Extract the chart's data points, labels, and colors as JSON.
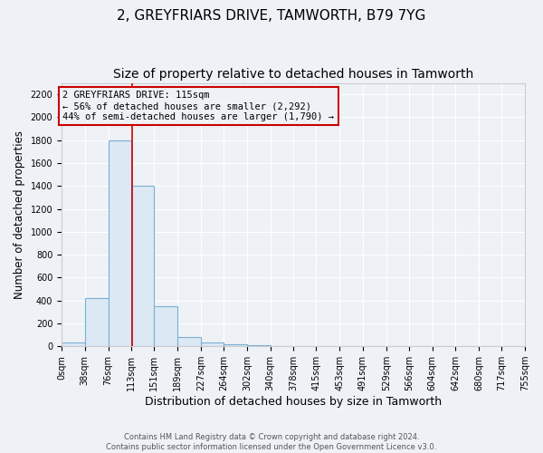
{
  "title": "2, GREYFRIARS DRIVE, TAMWORTH, B79 7YG",
  "subtitle": "Size of property relative to detached houses in Tamworth",
  "xlabel": "Distribution of detached houses by size in Tamworth",
  "ylabel": "Number of detached properties",
  "bin_edges": [
    0,
    38,
    76,
    113,
    151,
    189,
    227,
    264,
    302,
    340,
    378,
    415,
    453,
    491,
    529,
    566,
    604,
    642,
    680,
    717,
    755
  ],
  "bar_heights": [
    30,
    420,
    1800,
    1400,
    350,
    80,
    30,
    20,
    10,
    5,
    5,
    3,
    2,
    1,
    1,
    1,
    0,
    0,
    0,
    0
  ],
  "bar_color": "#dce9f5",
  "bar_edge_color": "#7aafd4",
  "property_size": 115,
  "vline_color": "#cc0000",
  "annotation_text": "2 GREYFRIARS DRIVE: 115sqm\n← 56% of detached houses are smaller (2,292)\n44% of semi-detached houses are larger (1,790) →",
  "annotation_box_color": "#cc0000",
  "ylim": [
    0,
    2300
  ],
  "yticks": [
    0,
    200,
    400,
    600,
    800,
    1000,
    1200,
    1400,
    1600,
    1800,
    2000,
    2200
  ],
  "tick_labels": [
    "0sqm",
    "38sqm",
    "76sqm",
    "113sqm",
    "151sqm",
    "189sqm",
    "227sqm",
    "264sqm",
    "302sqm",
    "340sqm",
    "378sqm",
    "415sqm",
    "453sqm",
    "491sqm",
    "529sqm",
    "566sqm",
    "604sqm",
    "642sqm",
    "680sqm",
    "717sqm",
    "755sqm"
  ],
  "background_color": "#eef2f7",
  "plot_bg_color": "#eef2f7",
  "grid_color": "#ffffff",
  "footer_text": "Contains HM Land Registry data © Crown copyright and database right 2024.\nContains public sector information licensed under the Open Government Licence v3.0.",
  "title_fontsize": 11,
  "subtitle_fontsize": 10,
  "ylabel_fontsize": 8.5,
  "xlabel_fontsize": 9,
  "tick_fontsize": 7,
  "annotation_fontsize": 7.5
}
